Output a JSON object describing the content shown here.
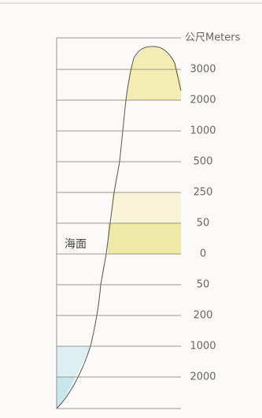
{
  "axis_unit": "公尺Meters",
  "sea_level_label": "海面",
  "levels": [
    "3000",
    "2000",
    "1000",
    "500",
    "250",
    "50",
    "0",
    "50",
    "200",
    "1000",
    "2000"
  ]
}
